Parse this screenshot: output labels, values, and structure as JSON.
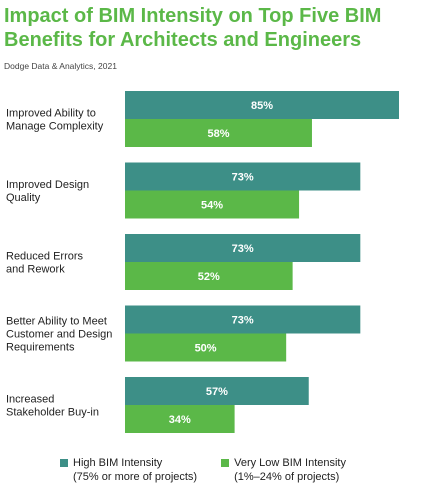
{
  "chart_data": {
    "type": "bar",
    "orientation": "horizontal",
    "title": "Impact of BIM Intensity on Top Five BIM Benefits for Architects and Engineers",
    "source": "Dodge Data & Analytics, 2021",
    "categories": [
      [
        "Improved Ability to",
        "Manage Complexity"
      ],
      [
        "Improved Design",
        "Quality"
      ],
      [
        "Reduced Errors",
        "and Rework"
      ],
      [
        "Better Ability to Meet",
        "Customer and Design",
        "Requirements"
      ],
      [
        "Increased",
        "Stakeholder Buy-in"
      ]
    ],
    "series": [
      {
        "name": [
          "High BIM Intensity",
          "(75% or more of projects)"
        ],
        "color": "#3d8f87",
        "values": [
          85,
          73,
          73,
          73,
          57
        ]
      },
      {
        "name": [
          "Very Low BIM Intensity",
          "(1%–24% of projects)"
        ],
        "color": "#5bb848",
        "values": [
          58,
          54,
          52,
          50,
          34
        ]
      }
    ],
    "value_suffix": "%",
    "xlim": [
      0,
      85
    ],
    "legend_position": "bottom"
  }
}
